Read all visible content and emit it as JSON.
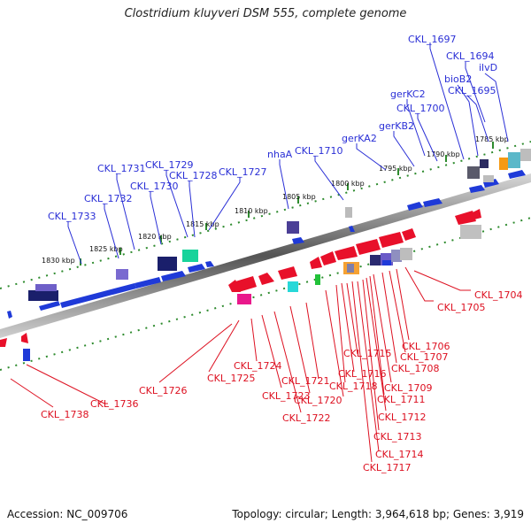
{
  "title": "Clostridium kluyveri DSM 555, complete genome",
  "footer": {
    "accession": "Accession: NC_009706",
    "summary": "Topology: circular; Length: 3,964,618 bp; Genes: 3,919"
  },
  "scale_labels": [
    "1830 kbp",
    "1825 kbp",
    "1820 kbp",
    "1815 kbp",
    "1810 kbp",
    "1805 kbp",
    "1800 kbp",
    "1795 kbp",
    "1790 kbp",
    "1785 kbp"
  ],
  "top_labels": [
    "CKL_1697",
    "CKL_1694",
    "ilvD",
    "bioB2",
    "CKL_1695",
    "gerKC2",
    "CKL_1700",
    "gerKB2",
    "gerKA2",
    "CKL_1710",
    "nhaA",
    "CKL_1727",
    "CKL_1729",
    "CKL_1728",
    "CKL_1731",
    "CKL_1730",
    "CKL_1732",
    "CKL_1733"
  ],
  "bottom_labels": [
    "CKL_1704",
    "CKL_1705",
    "CKL_1706",
    "CKL_1707",
    "CKL_1708",
    "CKL_1709",
    "CKL_1711",
    "CKL_1712",
    "CKL_1713",
    "CKL_1714",
    "CKL_1717",
    "CKL_1715",
    "CKL_1716",
    "CKL_1718",
    "CKL_1721",
    "CKL_1720",
    "CKL_1722",
    "CKL_1723",
    "CKL_1724",
    "CKL_1725",
    "CKL_1726",
    "CKL_1736",
    "CKL_1738"
  ],
  "colors": {
    "forward": "#1f3ad8",
    "reverse": "#e8102a",
    "label_forward": "#2a2fd6",
    "label_reverse": "#dd1020",
    "dots": "#2e8b2e",
    "backbone": "#7a7a7a"
  }
}
